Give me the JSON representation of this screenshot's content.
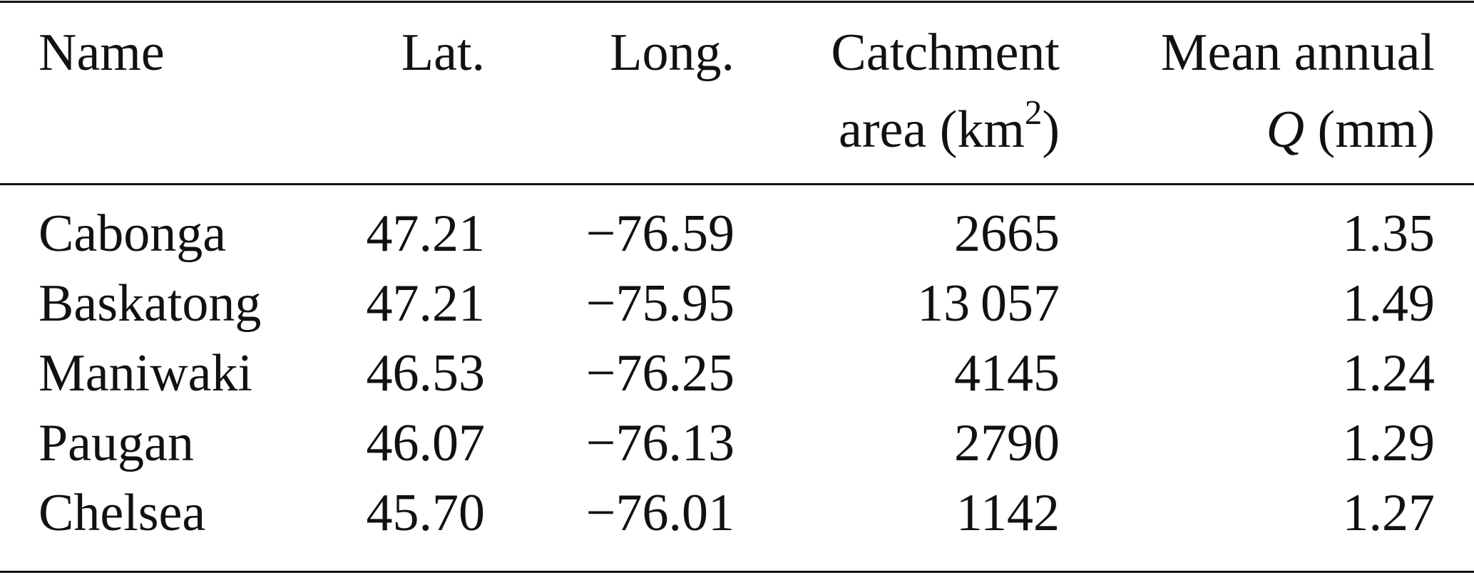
{
  "table": {
    "headers": {
      "name": "Name",
      "lat": "Lat.",
      "long": "Long.",
      "area_line1": "Catchment",
      "area_line2_prefix": "area (km",
      "area_line2_sup": "2",
      "area_line2_suffix": ")",
      "q_line1": "Mean annual",
      "q_symbol": "Q",
      "q_unit": " (mm)"
    },
    "rows": [
      {
        "name": "Cabonga",
        "lat": "47.21",
        "long": "−76.59",
        "area": "2665",
        "q": "1.35"
      },
      {
        "name": "Baskatong",
        "lat": "47.21",
        "long": "−75.95",
        "area": "13 057",
        "q": "1.49"
      },
      {
        "name": "Maniwaki",
        "lat": "46.53",
        "long": "−76.25",
        "area": "4145",
        "q": "1.24"
      },
      {
        "name": "Paugan",
        "lat": "46.07",
        "long": "−76.13",
        "area": "2790",
        "q": "1.29"
      },
      {
        "name": "Chelsea",
        "lat": "45.70",
        "long": "−76.01",
        "area": "1142",
        "q": "1.27"
      }
    ]
  }
}
